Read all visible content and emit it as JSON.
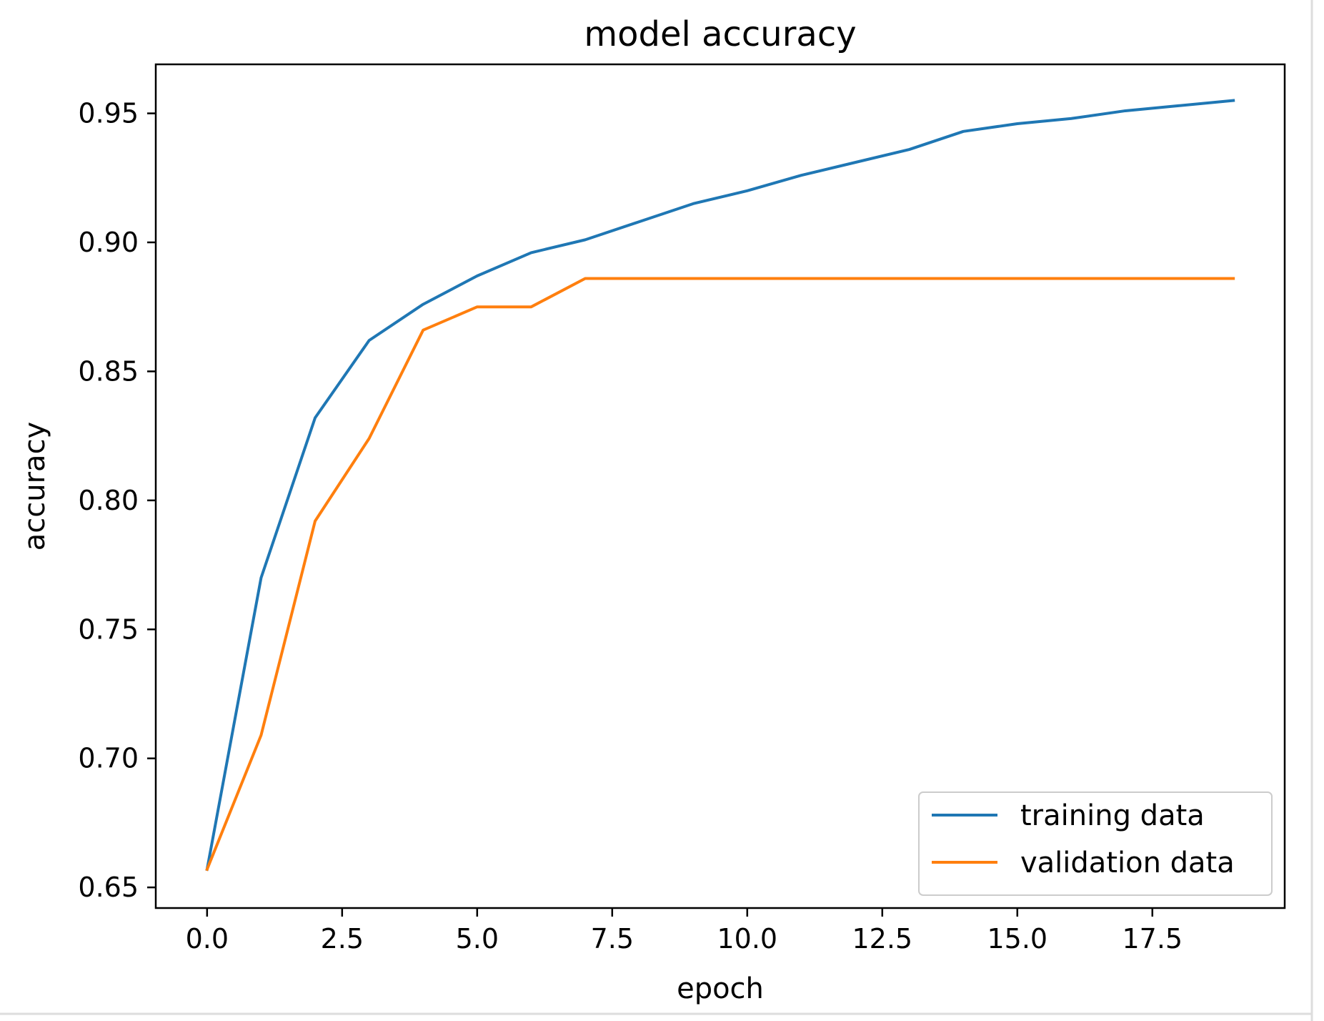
{
  "chart_data": {
    "type": "line",
    "title": "model accuracy",
    "xlabel": "epoch",
    "ylabel": "accuracy",
    "xlim": [
      -0.95,
      19.95
    ],
    "ylim": [
      0.642,
      0.969
    ],
    "xticks": [
      0.0,
      2.5,
      5.0,
      7.5,
      10.0,
      12.5,
      15.0,
      17.5
    ],
    "xtick_labels": [
      "0.0",
      "2.5",
      "5.0",
      "7.5",
      "10.0",
      "12.5",
      "15.0",
      "17.5"
    ],
    "yticks": [
      0.65,
      0.7,
      0.75,
      0.8,
      0.85,
      0.9,
      0.95
    ],
    "ytick_labels": [
      "0.65",
      "0.70",
      "0.75",
      "0.80",
      "0.85",
      "0.90",
      "0.95"
    ],
    "grid": false,
    "legend": "lower-right",
    "x": [
      0,
      1,
      2,
      3,
      4,
      5,
      6,
      7,
      8,
      9,
      10,
      11,
      12,
      13,
      14,
      15,
      16,
      17,
      18,
      19
    ],
    "series": [
      {
        "name": "training data",
        "color": "#1f77b4",
        "values": [
          0.657,
          0.77,
          0.832,
          0.862,
          0.876,
          0.887,
          0.896,
          0.901,
          0.908,
          0.915,
          0.92,
          0.926,
          0.931,
          0.936,
          0.943,
          0.946,
          0.948,
          0.951,
          0.953,
          0.955
        ]
      },
      {
        "name": "validation data",
        "color": "#ff7f0e",
        "values": [
          0.657,
          0.709,
          0.792,
          0.824,
          0.866,
          0.875,
          0.875,
          0.886,
          0.886,
          0.886,
          0.886,
          0.886,
          0.886,
          0.886,
          0.886,
          0.886,
          0.886,
          0.886,
          0.886,
          0.886
        ]
      }
    ]
  }
}
